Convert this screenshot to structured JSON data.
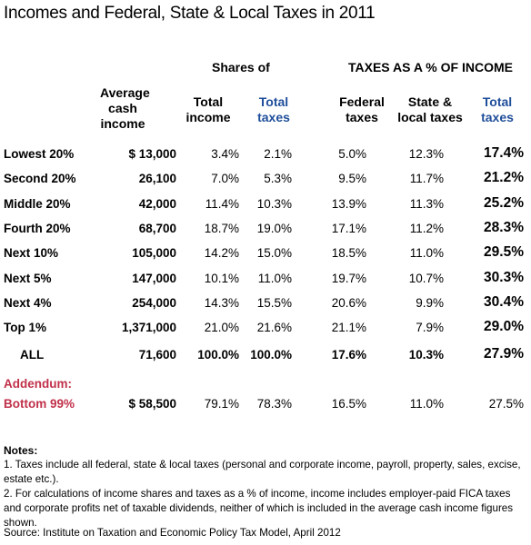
{
  "title": "Incomes and Federal, State & Local Taxes in 2011",
  "headers": {
    "shares_of": "Shares of",
    "taxes_pct": "TAXES AS A % OF INCOME",
    "avg_income_l1": "Average",
    "avg_income_l2": "cash",
    "avg_income_l3": "income",
    "total_income_l1": "Total",
    "total_income_l2": "income",
    "total_taxes_l1": "Total",
    "total_taxes_l2": "taxes",
    "federal_l1": "Federal",
    "federal_l2": "taxes",
    "state_l1": "State &",
    "state_l2": "local taxes",
    "tot_l1": "Total",
    "tot_l2": "taxes"
  },
  "rows": [
    {
      "label": "Lowest 20%",
      "income": "$ 13,000",
      "share_income": "3.4%",
      "share_taxes": "2.1%",
      "federal": "5.0%",
      "state_local": "12.3%",
      "total": "17.4%"
    },
    {
      "label": "Second 20%",
      "income": "26,100",
      "share_income": "7.0%",
      "share_taxes": "5.3%",
      "federal": "9.5%",
      "state_local": "11.7%",
      "total": "21.2%"
    },
    {
      "label": "Middle 20%",
      "income": "42,000",
      "share_income": "11.4%",
      "share_taxes": "10.3%",
      "federal": "13.9%",
      "state_local": "11.3%",
      "total": "25.2%"
    },
    {
      "label": "Fourth 20%",
      "income": "68,700",
      "share_income": "18.7%",
      "share_taxes": "19.0%",
      "federal": "17.1%",
      "state_local": "11.2%",
      "total": "28.3%"
    },
    {
      "label": "Next 10%",
      "income": "105,000",
      "share_income": "14.2%",
      "share_taxes": "15.0%",
      "federal": "18.5%",
      "state_local": "11.0%",
      "total": "29.5%"
    },
    {
      "label": "Next 5%",
      "income": "147,000",
      "share_income": "10.1%",
      "share_taxes": "11.0%",
      "federal": "19.7%",
      "state_local": "10.7%",
      "total": "30.3%"
    },
    {
      "label": "Next 4%",
      "income": "254,000",
      "share_income": "14.3%",
      "share_taxes": "15.5%",
      "federal": "20.6%",
      "state_local": "9.9%",
      "total": "30.4%"
    },
    {
      "label": "Top 1%",
      "income": "1,371,000",
      "share_income": "21.0%",
      "share_taxes": "21.6%",
      "federal": "21.1%",
      "state_local": "7.9%",
      "total": "29.0%"
    }
  ],
  "all_row": {
    "label": "ALL",
    "income": "71,600",
    "share_income": "100.0%",
    "share_taxes": "100.0%",
    "federal": "17.6%",
    "state_local": "10.3%",
    "total": "27.9%"
  },
  "addendum": {
    "label_l1": "Addendum:",
    "label_l2": "Bottom 99%",
    "income": "$ 58,500",
    "share_income": "79.1%",
    "share_taxes": "78.3%",
    "federal": "16.5%",
    "state_local": "11.0%",
    "total": "27.5%"
  },
  "notes": {
    "heading": "Notes:",
    "n1": "1. Taxes include all federal, state & local taxes (personal and corporate income, payroll, property, sales, excise, estate etc.).",
    "n2": "2. For calculations of income shares and taxes as a % of income, income includes employer-paid FICA taxes and corporate profits net of taxable dividends, neither of which is included in the average cash income figures shown."
  },
  "source": "Source: Institute on Taxation and Economic Policy Tax Model, April 2012",
  "colors": {
    "blue_header": "#1f4e9a",
    "addendum_red": "#c0304a"
  }
}
